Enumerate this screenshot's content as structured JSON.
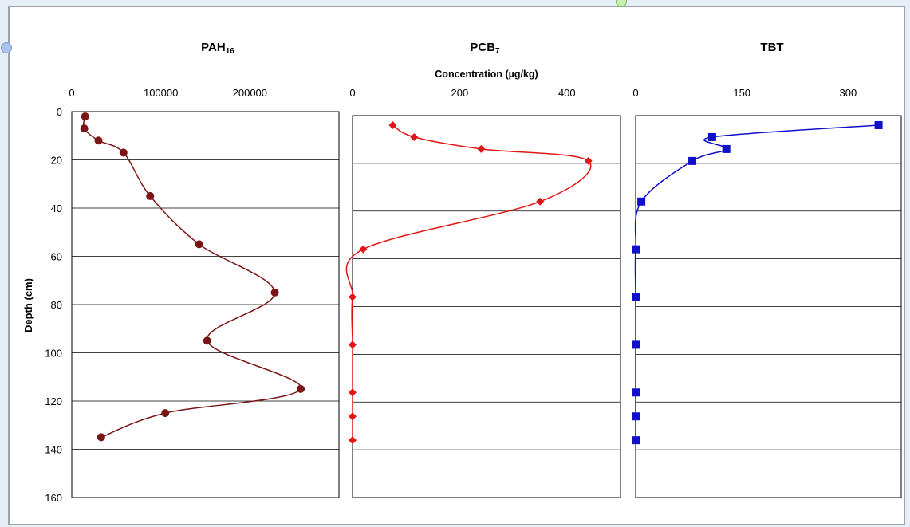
{
  "chart_data": [
    {
      "type": "line",
      "title": "PAH16",
      "title_main": "PAH",
      "title_sub": "16",
      "xlim": [
        0,
        300000
      ],
      "x_ticks": [
        "0",
        "100000",
        "200000"
      ],
      "ylim": [
        0,
        160
      ],
      "y_ticks": [
        "0",
        "20",
        "40",
        "60",
        "80",
        "100",
        "120",
        "140",
        "160"
      ],
      "ylabel": "Depth (cm)",
      "grid": true,
      "series": [
        {
          "color": "#7a1515",
          "marker": "circle",
          "points": [
            {
              "x": 15000,
              "y": 2
            },
            {
              "x": 14000,
              "y": 7
            },
            {
              "x": 30000,
              "y": 12
            },
            {
              "x": 58000,
              "y": 17
            },
            {
              "x": 88000,
              "y": 35
            },
            {
              "x": 143000,
              "y": 55
            },
            {
              "x": 228000,
              "y": 75
            },
            {
              "x": 152000,
              "y": 95
            },
            {
              "x": 257000,
              "y": 115
            },
            {
              "x": 105000,
              "y": 125
            },
            {
              "x": 33000,
              "y": 135
            }
          ]
        }
      ]
    },
    {
      "type": "line",
      "title": "PCB7",
      "title_main": "PCB",
      "title_sub": "7",
      "xlabel": "Concentration (µg/kg)",
      "xlim": [
        0,
        500
      ],
      "x_ticks": [
        "0",
        "200",
        "400"
      ],
      "ylim": [
        0,
        160
      ],
      "grid": true,
      "series": [
        {
          "color": "#e01515",
          "marker": "diamond",
          "points": [
            {
              "x": 75,
              "y": 4
            },
            {
              "x": 115,
              "y": 9
            },
            {
              "x": 240,
              "y": 14
            },
            {
              "x": 440,
              "y": 19
            },
            {
              "x": 350,
              "y": 36
            },
            {
              "x": 20,
              "y": 56
            },
            {
              "x": 0,
              "y": 76
            },
            {
              "x": 0,
              "y": 96
            },
            {
              "x": 0,
              "y": 116
            },
            {
              "x": 0,
              "y": 126
            },
            {
              "x": 0,
              "y": 136
            }
          ]
        }
      ]
    },
    {
      "type": "line",
      "title": "TBT",
      "xlim": [
        0,
        375
      ],
      "x_ticks": [
        "0",
        "150",
        "300"
      ],
      "ylim": [
        0,
        160
      ],
      "grid": true,
      "series": [
        {
          "color": "#1010c8",
          "marker": "square",
          "points": [
            {
              "x": 343,
              "y": 4
            },
            {
              "x": 108,
              "y": 9
            },
            {
              "x": 128,
              "y": 14
            },
            {
              "x": 80,
              "y": 19
            },
            {
              "x": 8,
              "y": 36
            },
            {
              "x": 0,
              "y": 56
            },
            {
              "x": 0,
              "y": 76
            },
            {
              "x": 0,
              "y": 96
            },
            {
              "x": 0,
              "y": 116
            },
            {
              "x": 0,
              "y": 126
            },
            {
              "x": 0,
              "y": 136
            }
          ]
        }
      ]
    }
  ]
}
